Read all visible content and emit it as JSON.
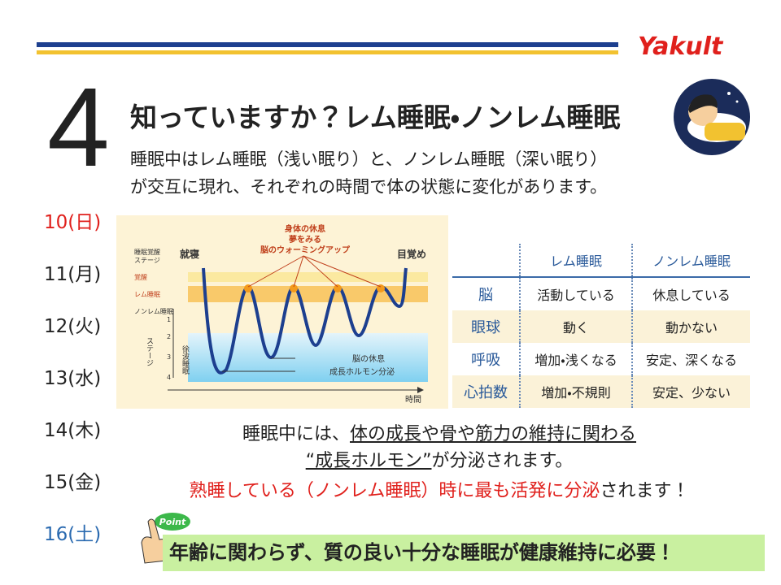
{
  "brand": "Yakult",
  "number": "4",
  "title": "知っていますか？レム睡眠・ノンレム睡眠",
  "intro": [
    "睡眠中はレム睡眠（浅い眠り）と、ノンレム睡眠（深い眠り）",
    "が交互に現れ、それぞれの時間で体の状態に変化があります。"
  ],
  "days": [
    "10(日)",
    "11(月)",
    "12(火)",
    "13(水)",
    "14(木)",
    "15(金)",
    "16(土)"
  ],
  "diagram": {
    "y_axis_title": [
      "睡眠覚醒",
      "ステージ"
    ],
    "stages": [
      "覚醒",
      "レム睡眠",
      "ノンレム睡眠"
    ],
    "stage_axis": "ステージ",
    "stage_numbers": [
      1,
      2,
      3,
      4
    ],
    "deep_sleep": "徐波睡眠",
    "start": "就寝",
    "end": "目覚め",
    "rem_note": [
      "身体の休息",
      "夢をみる",
      "脳のウォーミングアップ"
    ],
    "nrem_note": [
      "脳の休息",
      "成長ホルモン分泌"
    ],
    "x_axis": "時間"
  },
  "table": {
    "columns": [
      "レム睡眠",
      "ノンレム睡眠"
    ],
    "rows": [
      [
        "脳",
        "活動している",
        "休息している"
      ],
      [
        "眼球",
        "動く",
        "動かない"
      ],
      [
        "呼吸",
        "増加・浅くなる",
        "安定、深くなる"
      ],
      [
        "心拍数",
        "増加・不規則",
        "安定、少ない"
      ]
    ]
  },
  "body": [
    [
      "睡眠中には、",
      "体の成長や骨や筋力の維持に関わる"
    ],
    [
      "“成長ホルモン”",
      "が分泌されます。"
    ]
  ],
  "emphasis": [
    "熟睡している（ノンレム睡眠）時に最も活発に分泌",
    "されます！"
  ],
  "point_badge": "Point",
  "conclusion": "年齢に関わらず、質の良い十分な睡眠が健康維持に必要！"
}
